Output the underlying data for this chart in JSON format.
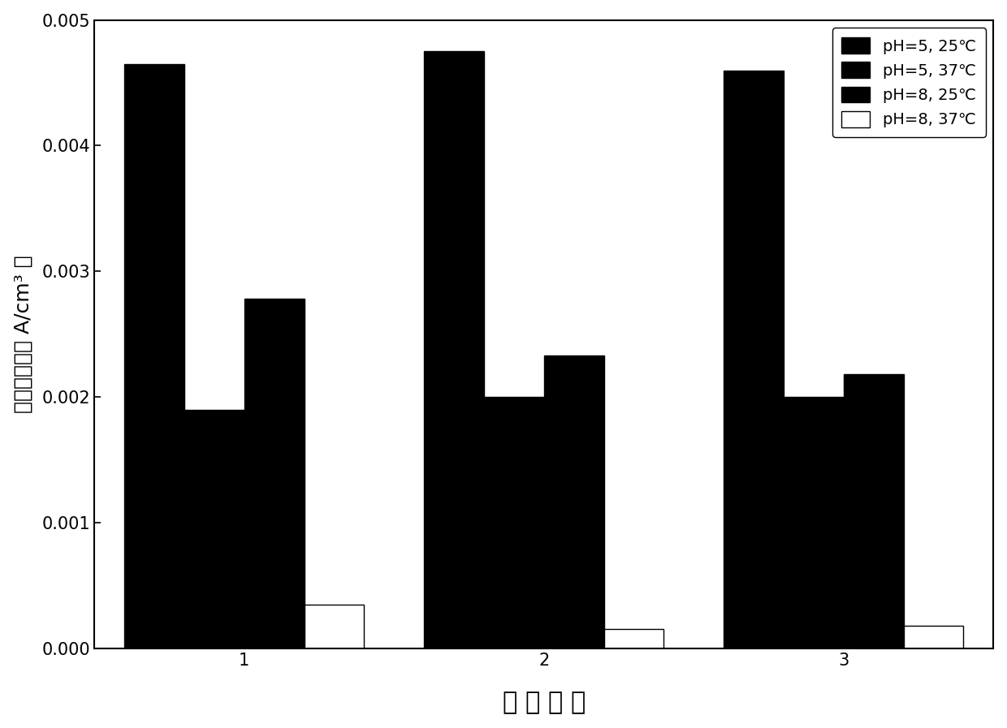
{
  "categories": [
    "1",
    "2",
    "3"
  ],
  "series": [
    {
      "label": "pH=5, 25°C",
      "values": [
        0.00465,
        0.00475,
        0.0046
      ],
      "color": "#000000",
      "edgecolor": "#000000"
    },
    {
      "label": "pH=5, 37°C",
      "values": [
        0.0019,
        0.002,
        0.002
      ],
      "color": "#000000",
      "edgecolor": "#000000"
    },
    {
      "label": "pH=8, 25°C",
      "values": [
        0.00278,
        0.00233,
        0.00218
      ],
      "color": "#000000",
      "edgecolor": "#000000"
    },
    {
      "label": "pH=8, 37°C",
      "values": [
        0.00035,
        0.00015,
        0.00018
      ],
      "color": "#ffffff",
      "edgecolor": "#000000"
    }
  ],
  "ylabel": "峰电流密度（ A/cm³ ）",
  "xlabel": "开 关 次 数",
  "ylim": [
    0,
    0.005
  ],
  "yticks": [
    0.0,
    0.001,
    0.002,
    0.003,
    0.004,
    0.005
  ],
  "bar_width": 0.2,
  "legend_fontsize": 14,
  "axis_fontsize": 18,
  "tick_fontsize": 15,
  "xlabel_fontsize": 22,
  "background_color": "#ffffff",
  "legend_labels": [
    "pH=5, 25℃",
    "pH=5, 37℃",
    "pH=8, 25℃",
    "pH=8, 37℃"
  ]
}
